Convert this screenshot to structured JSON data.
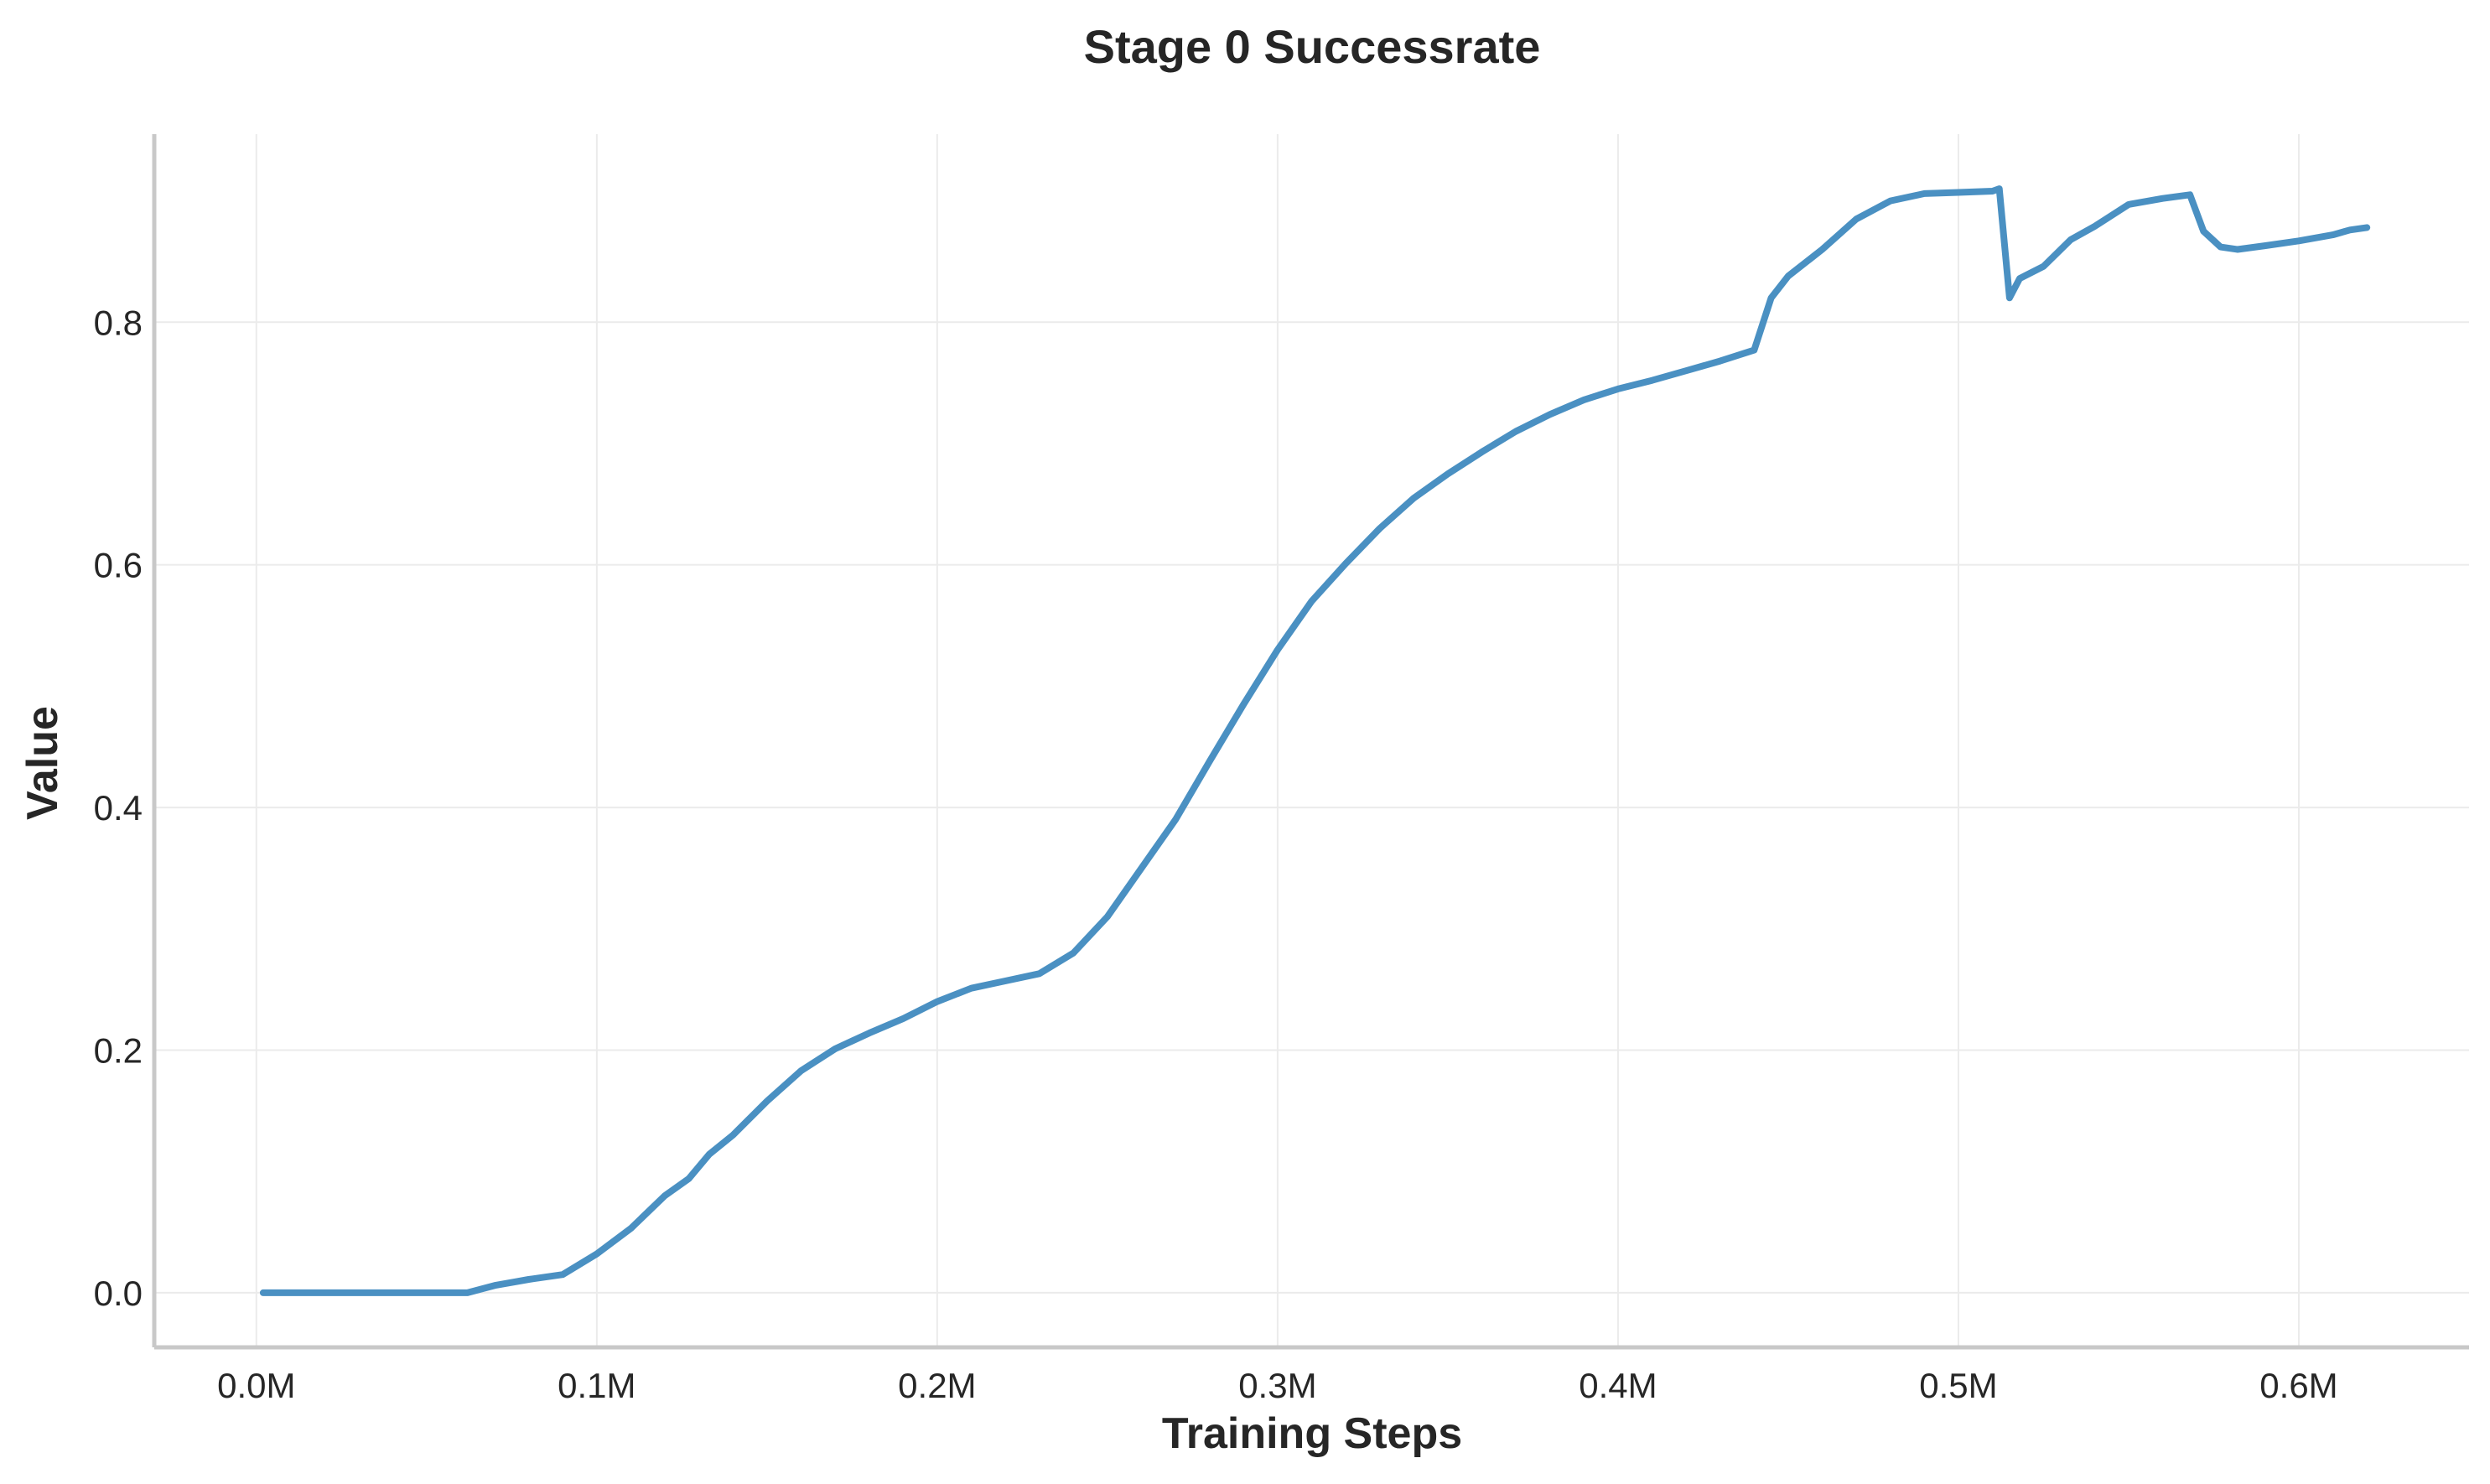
{
  "chart_data": {
    "type": "line",
    "title": "Stage 0 Successrate",
    "xlabel": "Training Steps",
    "ylabel": "Value",
    "xlim": [
      -0.03,
      0.65
    ],
    "ylim": [
      -0.045,
      0.955
    ],
    "grid": true,
    "xticks": [
      {
        "value": 0.0,
        "label": "0.0M"
      },
      {
        "value": 0.1,
        "label": "0.1M"
      },
      {
        "value": 0.2,
        "label": "0.2M"
      },
      {
        "value": 0.3,
        "label": "0.3M"
      },
      {
        "value": 0.4,
        "label": "0.4M"
      },
      {
        "value": 0.5,
        "label": "0.5M"
      },
      {
        "value": 0.6,
        "label": "0.6M"
      }
    ],
    "yticks": [
      {
        "value": 0.0,
        "label": "0.0"
      },
      {
        "value": 0.2,
        "label": "0.2"
      },
      {
        "value": 0.4,
        "label": "0.4"
      },
      {
        "value": 0.6,
        "label": "0.6"
      },
      {
        "value": 0.8,
        "label": "0.8"
      }
    ],
    "series": [
      {
        "color": "#4a90c2",
        "points": [
          [
            0.002,
            0.0
          ],
          [
            0.02,
            0.0
          ],
          [
            0.04,
            0.0
          ],
          [
            0.062,
            0.0
          ],
          [
            0.07,
            0.006
          ],
          [
            0.08,
            0.011
          ],
          [
            0.09,
            0.015
          ],
          [
            0.1,
            0.032
          ],
          [
            0.11,
            0.053
          ],
          [
            0.12,
            0.08
          ],
          [
            0.127,
            0.094
          ],
          [
            0.133,
            0.114
          ],
          [
            0.14,
            0.13
          ],
          [
            0.15,
            0.158
          ],
          [
            0.16,
            0.183
          ],
          [
            0.17,
            0.201
          ],
          [
            0.18,
            0.214
          ],
          [
            0.19,
            0.226
          ],
          [
            0.2,
            0.24
          ],
          [
            0.21,
            0.251
          ],
          [
            0.22,
            0.257
          ],
          [
            0.23,
            0.263
          ],
          [
            0.24,
            0.28
          ],
          [
            0.25,
            0.31
          ],
          [
            0.26,
            0.35
          ],
          [
            0.27,
            0.39
          ],
          [
            0.28,
            0.438
          ],
          [
            0.29,
            0.485
          ],
          [
            0.3,
            0.53
          ],
          [
            0.31,
            0.57
          ],
          [
            0.32,
            0.601
          ],
          [
            0.33,
            0.63
          ],
          [
            0.34,
            0.655
          ],
          [
            0.35,
            0.675
          ],
          [
            0.36,
            0.693
          ],
          [
            0.37,
            0.71
          ],
          [
            0.38,
            0.724
          ],
          [
            0.39,
            0.736
          ],
          [
            0.4,
            0.745
          ],
          [
            0.41,
            0.752
          ],
          [
            0.42,
            0.76
          ],
          [
            0.43,
            0.768
          ],
          [
            0.44,
            0.777
          ],
          [
            0.445,
            0.82
          ],
          [
            0.45,
            0.838
          ],
          [
            0.46,
            0.86
          ],
          [
            0.47,
            0.885
          ],
          [
            0.48,
            0.9
          ],
          [
            0.49,
            0.906
          ],
          [
            0.5,
            0.907
          ],
          [
            0.51,
            0.908
          ],
          [
            0.512,
            0.91
          ],
          [
            0.515,
            0.82
          ],
          [
            0.518,
            0.836
          ],
          [
            0.525,
            0.846
          ],
          [
            0.533,
            0.868
          ],
          [
            0.54,
            0.879
          ],
          [
            0.55,
            0.897
          ],
          [
            0.56,
            0.902
          ],
          [
            0.568,
            0.905
          ],
          [
            0.572,
            0.875
          ],
          [
            0.577,
            0.862
          ],
          [
            0.582,
            0.86
          ],
          [
            0.59,
            0.863
          ],
          [
            0.6,
            0.867
          ],
          [
            0.61,
            0.872
          ],
          [
            0.615,
            0.876
          ],
          [
            0.62,
            0.878
          ]
        ]
      }
    ]
  }
}
